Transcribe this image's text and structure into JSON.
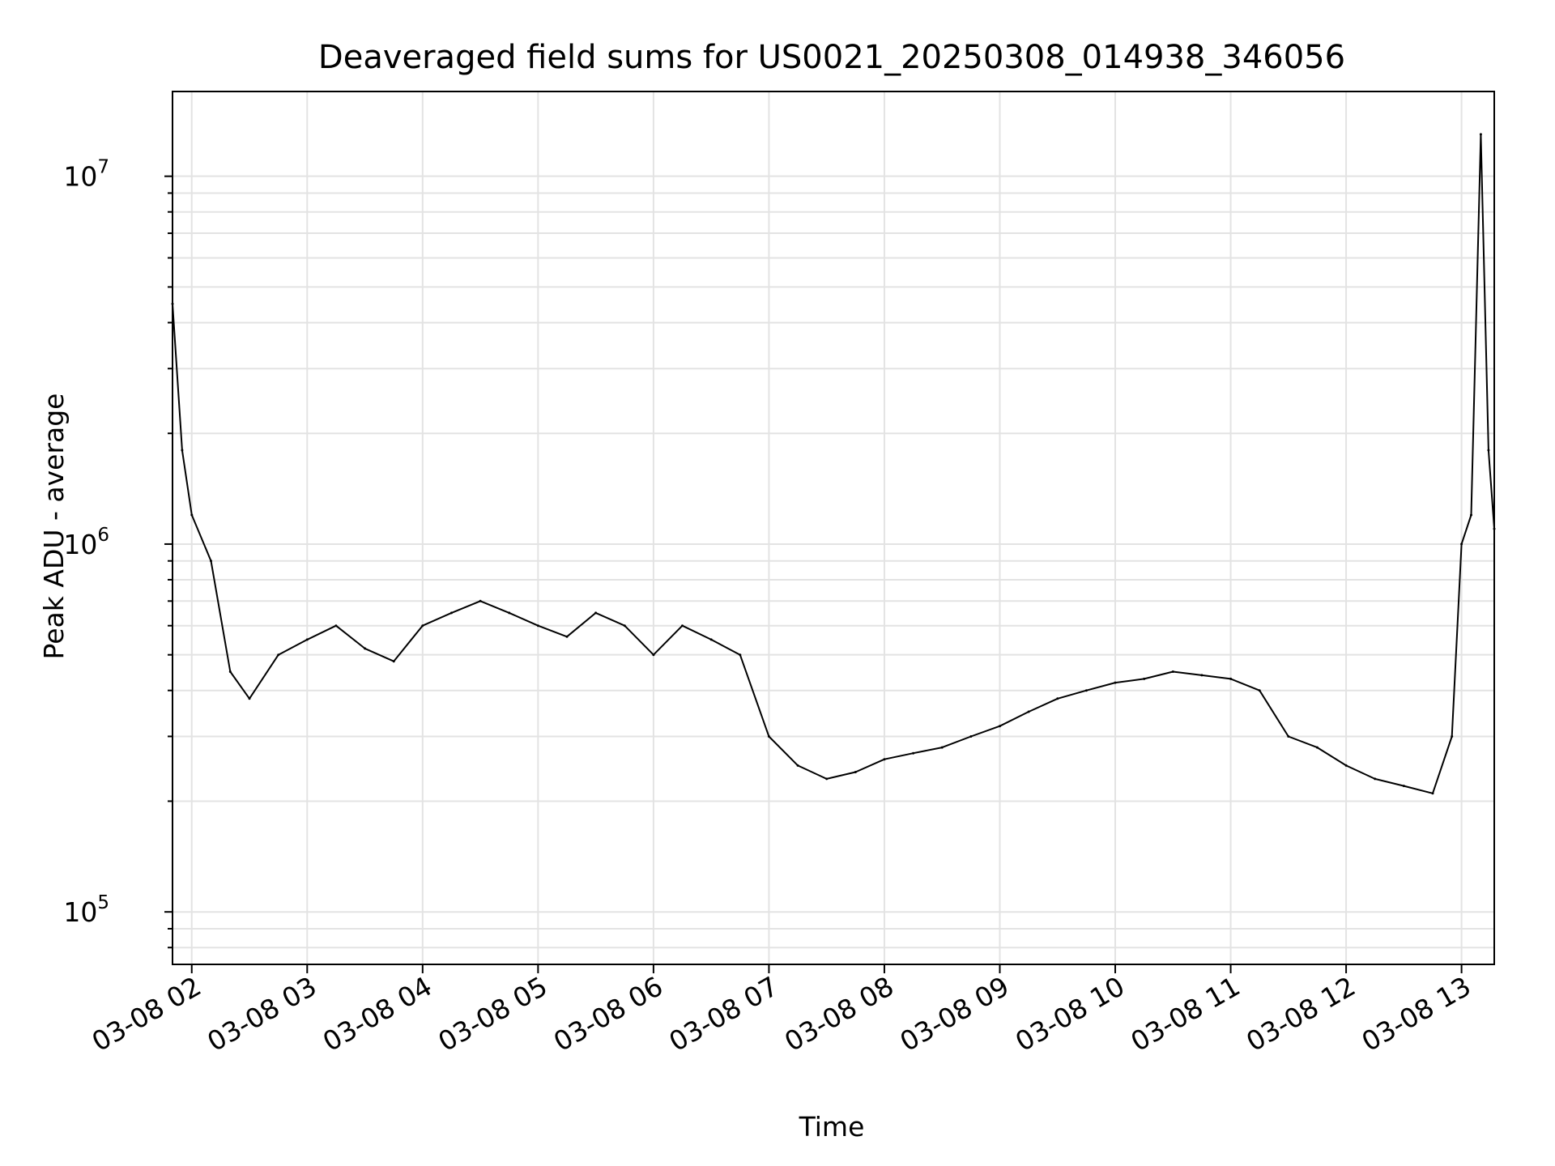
{
  "chart_data": {
    "type": "line",
    "title": "Deaveraged field sums for US0021_20250308_014938_346056",
    "xlabel": "Time",
    "ylabel": "Peak ADU - average",
    "yscale": "log",
    "xlim": [
      "2025-03-08 01:50",
      "2025-03-08 13:17"
    ],
    "ylim": [
      72000,
      17000000
    ],
    "grid": true,
    "x_ticks": [
      "03-08 02",
      "03-08 03",
      "03-08 04",
      "03-08 05",
      "03-08 06",
      "03-08 07",
      "03-08 08",
      "03-08 09",
      "03-08 10",
      "03-08 11",
      "03-08 12",
      "03-08 13"
    ],
    "y_ticks": [
      {
        "base": "10",
        "exp": "5",
        "value": 100000
      },
      {
        "base": "10",
        "exp": "6",
        "value": 1000000
      },
      {
        "base": "10",
        "exp": "7",
        "value": 10000000
      }
    ],
    "series": [
      {
        "color": "#000000",
        "x": [
          "2025-03-08 01:50",
          "2025-03-08 01:55",
          "2025-03-08 02:00",
          "2025-03-08 02:10",
          "2025-03-08 02:20",
          "2025-03-08 02:30",
          "2025-03-08 02:45",
          "2025-03-08 03:00",
          "2025-03-08 03:15",
          "2025-03-08 03:30",
          "2025-03-08 03:45",
          "2025-03-08 04:00",
          "2025-03-08 04:15",
          "2025-03-08 04:30",
          "2025-03-08 04:45",
          "2025-03-08 05:00",
          "2025-03-08 05:15",
          "2025-03-08 05:30",
          "2025-03-08 05:45",
          "2025-03-08 06:00",
          "2025-03-08 06:15",
          "2025-03-08 06:30",
          "2025-03-08 06:45",
          "2025-03-08 07:00",
          "2025-03-08 07:15",
          "2025-03-08 07:30",
          "2025-03-08 07:45",
          "2025-03-08 08:00",
          "2025-03-08 08:15",
          "2025-03-08 08:30",
          "2025-03-08 08:45",
          "2025-03-08 09:00",
          "2025-03-08 09:15",
          "2025-03-08 09:30",
          "2025-03-08 09:45",
          "2025-03-08 10:00",
          "2025-03-08 10:15",
          "2025-03-08 10:30",
          "2025-03-08 10:45",
          "2025-03-08 11:00",
          "2025-03-08 11:15",
          "2025-03-08 11:30",
          "2025-03-08 11:45",
          "2025-03-08 12:00",
          "2025-03-08 12:15",
          "2025-03-08 12:30",
          "2025-03-08 12:45",
          "2025-03-08 12:55",
          "2025-03-08 13:00",
          "2025-03-08 13:05",
          "2025-03-08 13:10",
          "2025-03-08 13:14",
          "2025-03-08 13:17"
        ],
        "values": [
          4500000,
          1800000,
          1200000,
          900000,
          450000,
          380000,
          500000,
          550000,
          600000,
          520000,
          480000,
          600000,
          650000,
          700000,
          650000,
          600000,
          560000,
          650000,
          600000,
          500000,
          600000,
          550000,
          500000,
          300000,
          250000,
          230000,
          240000,
          260000,
          270000,
          280000,
          300000,
          320000,
          350000,
          380000,
          400000,
          420000,
          430000,
          450000,
          440000,
          430000,
          400000,
          300000,
          280000,
          250000,
          230000,
          220000,
          210000,
          300000,
          1000000,
          1200000,
          13000000,
          1800000,
          1100000
        ]
      }
    ]
  }
}
